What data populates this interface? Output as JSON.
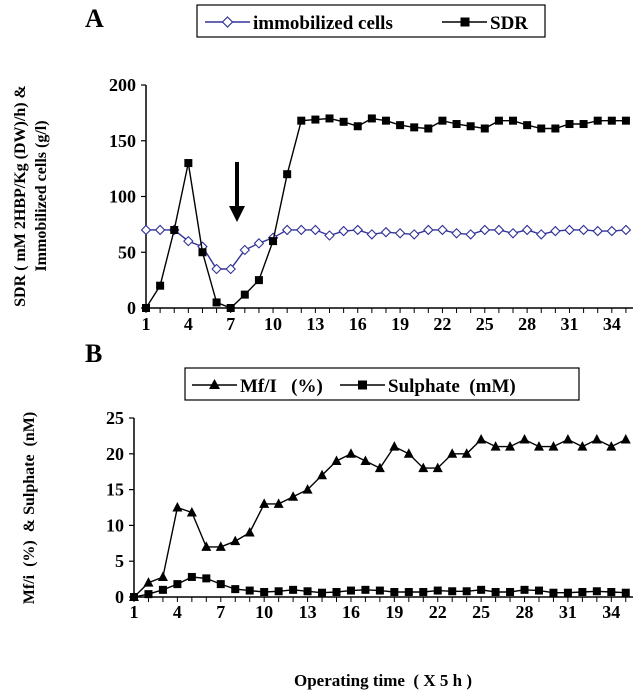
{
  "chart_data": [
    {
      "panel": "A",
      "type": "line",
      "ylabel_lines": [
        "SDR ( mM 2HBP/Kg (DW)/h) &",
        "Immobilized cells (g/l)"
      ],
      "xlabel": "",
      "xlim": [
        1,
        35
      ],
      "ylim": [
        0,
        200
      ],
      "x_ticks": [
        1,
        4,
        7,
        10,
        13,
        16,
        19,
        22,
        25,
        28,
        31,
        34
      ],
      "y_ticks": [
        0,
        50,
        100,
        150,
        200
      ],
      "legend_position": "top",
      "annotation": "arrow-down-at-x-7.5",
      "series": [
        {
          "name": "immobilized cells",
          "marker": "diamond-open",
          "color": "#333399",
          "x": [
            1,
            2,
            3,
            4,
            5,
            6,
            7,
            8,
            9,
            10,
            11,
            12,
            13,
            14,
            15,
            16,
            17,
            18,
            19,
            20,
            21,
            22,
            23,
            24,
            25,
            26,
            27,
            28,
            29,
            30,
            31,
            32,
            33,
            34,
            35
          ],
          "values": [
            70,
            70,
            70,
            60,
            55,
            35,
            35,
            52,
            58,
            63,
            70,
            70,
            70,
            65,
            69,
            70,
            66,
            68,
            67,
            66,
            70,
            70,
            67,
            66,
            70,
            70,
            67,
            70,
            66,
            69,
            70,
            70,
            69,
            69,
            70
          ]
        },
        {
          "name": "SDR",
          "marker": "square-filled",
          "color": "#000000",
          "x": [
            1,
            2,
            3,
            4,
            5,
            6,
            7,
            8,
            9,
            10,
            11,
            12,
            13,
            14,
            15,
            16,
            17,
            18,
            19,
            20,
            21,
            22,
            23,
            24,
            25,
            26,
            27,
            28,
            29,
            30,
            31,
            32,
            33,
            34,
            35
          ],
          "values": [
            0,
            20,
            70,
            130,
            50,
            5,
            0,
            12,
            25,
            60,
            120,
            168,
            169,
            170,
            167,
            163,
            170,
            168,
            164,
            162,
            161,
            168,
            165,
            163,
            161,
            168,
            168,
            164,
            161,
            161,
            165,
            165,
            168,
            168,
            168
          ]
        }
      ]
    },
    {
      "panel": "B",
      "type": "line",
      "ylabel_lines": [
        "Mf/i  (%)  & Sulphate  (nM)"
      ],
      "xlabel": "Operating time  ( X 5 h )",
      "xlim": [
        1,
        35
      ],
      "ylim": [
        0,
        25
      ],
      "x_ticks": [
        1,
        4,
        7,
        10,
        13,
        16,
        19,
        22,
        25,
        28,
        31,
        34
      ],
      "y_ticks": [
        0,
        5,
        10,
        15,
        20,
        25
      ],
      "legend_position": "top",
      "series": [
        {
          "name": "Mf/I   (%)",
          "marker": "triangle-filled",
          "color": "#000000",
          "x": [
            1,
            2,
            3,
            4,
            5,
            6,
            7,
            8,
            9,
            10,
            11,
            12,
            13,
            14,
            15,
            16,
            17,
            18,
            19,
            20,
            21,
            22,
            23,
            24,
            25,
            26,
            27,
            28,
            29,
            30,
            31,
            32,
            33,
            34,
            35
          ],
          "values": [
            0,
            2,
            2.8,
            12.5,
            11.8,
            7,
            7,
            7.8,
            9,
            13,
            13,
            14,
            15,
            17,
            19,
            20,
            19,
            18,
            21,
            20,
            18,
            18,
            20,
            20,
            22,
            21,
            21,
            22,
            21,
            21,
            22,
            21,
            22,
            21,
            22
          ]
        },
        {
          "name": "Sulphate  (mM)",
          "marker": "square-filled",
          "color": "#000000",
          "x": [
            1,
            2,
            3,
            4,
            5,
            6,
            7,
            8,
            9,
            10,
            11,
            12,
            13,
            14,
            15,
            16,
            17,
            18,
            19,
            20,
            21,
            22,
            23,
            24,
            25,
            26,
            27,
            28,
            29,
            30,
            31,
            32,
            33,
            34,
            35
          ],
          "values": [
            0,
            0.4,
            1,
            1.8,
            2.8,
            2.6,
            1.8,
            1.1,
            0.9,
            0.7,
            0.8,
            1.0,
            0.8,
            0.6,
            0.7,
            0.9,
            1.0,
            0.9,
            0.7,
            0.7,
            0.7,
            0.9,
            0.8,
            0.8,
            1.0,
            0.7,
            0.7,
            1.0,
            0.9,
            0.6,
            0.6,
            0.7,
            0.8,
            0.7,
            0.6
          ]
        }
      ]
    }
  ]
}
